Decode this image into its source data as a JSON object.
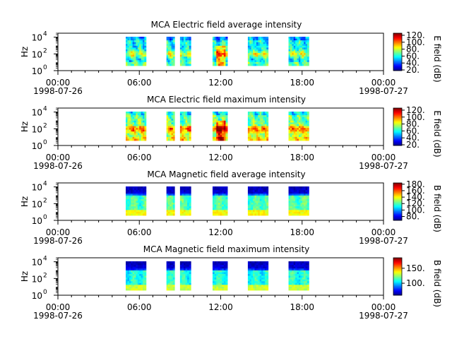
{
  "chart_data": [
    {
      "type": "heatmap",
      "title": "MCA  Electric field average intensity",
      "ylabel": "Hz",
      "colorbar_label": "E field (dB)",
      "colorbar_ticks": [
        "20.",
        "40.",
        "60.",
        "80.",
        "100.",
        "120."
      ],
      "colorbar_range": [
        18,
        126
      ],
      "yscale": "log",
      "ylim": [
        1,
        30000
      ],
      "y_ticks": [
        {
          "base": "10",
          "exp": "0"
        },
        {
          "base": "10",
          "exp": "2"
        },
        {
          "base": "10",
          "exp": "4"
        }
      ],
      "x_ticks": [
        {
          "time": "00:00",
          "date": "1998-07-26"
        },
        {
          "time": "06:00",
          "date": ""
        },
        {
          "time": "12:00",
          "date": ""
        },
        {
          "time": "18:00",
          "date": ""
        },
        {
          "time": "00:00",
          "date": "1998-07-27"
        }
      ],
      "x_range_hours": [
        0,
        24
      ],
      "data_intervals_hours": [
        [
          5.0,
          6.5
        ],
        [
          8.0,
          8.6
        ],
        [
          9.0,
          9.8
        ],
        [
          11.4,
          12.5
        ],
        [
          14.0,
          15.5
        ],
        [
          17.0,
          18.5
        ]
      ],
      "pattern": "electric-avg"
    },
    {
      "type": "heatmap",
      "title": "MCA  Electric field maximum intensity",
      "ylabel": "Hz",
      "colorbar_label": "E field (dB)",
      "colorbar_ticks": [
        "20.",
        "40.",
        "60.",
        "80.",
        "100.",
        "120."
      ],
      "colorbar_range": [
        18,
        126
      ],
      "yscale": "log",
      "ylim": [
        1,
        30000
      ],
      "y_ticks": [
        {
          "base": "10",
          "exp": "0"
        },
        {
          "base": "10",
          "exp": "2"
        },
        {
          "base": "10",
          "exp": "4"
        }
      ],
      "x_ticks": [
        {
          "time": "00:00",
          "date": "1998-07-26"
        },
        {
          "time": "06:00",
          "date": ""
        },
        {
          "time": "12:00",
          "date": ""
        },
        {
          "time": "18:00",
          "date": ""
        },
        {
          "time": "00:00",
          "date": "1998-07-27"
        }
      ],
      "x_range_hours": [
        0,
        24
      ],
      "data_intervals_hours": [
        [
          5.0,
          6.5
        ],
        [
          8.0,
          8.6
        ],
        [
          9.0,
          9.8
        ],
        [
          11.4,
          12.5
        ],
        [
          14.0,
          15.5
        ],
        [
          17.0,
          18.5
        ]
      ],
      "pattern": "electric-max"
    },
    {
      "type": "heatmap",
      "title": "MCA  Magnetic field average intensity",
      "ylabel": "Hz",
      "colorbar_label": "B field (dB)",
      "colorbar_ticks": [
        "80.",
        "100.",
        "120.",
        "140.",
        "160.",
        "180."
      ],
      "colorbar_range": [
        68,
        184
      ],
      "yscale": "log",
      "ylim": [
        1,
        30000
      ],
      "y_ticks": [
        {
          "base": "10",
          "exp": "0"
        },
        {
          "base": "10",
          "exp": "2"
        },
        {
          "base": "10",
          "exp": "4"
        }
      ],
      "x_ticks": [
        {
          "time": "00:00",
          "date": "1998-07-26"
        },
        {
          "time": "06:00",
          "date": ""
        },
        {
          "time": "12:00",
          "date": ""
        },
        {
          "time": "18:00",
          "date": ""
        },
        {
          "time": "00:00",
          "date": "1998-07-27"
        }
      ],
      "x_range_hours": [
        0,
        24
      ],
      "data_intervals_hours": [
        [
          5.0,
          6.5
        ],
        [
          8.0,
          8.6
        ],
        [
          9.0,
          9.8
        ],
        [
          11.4,
          12.5
        ],
        [
          14.0,
          15.5
        ],
        [
          17.0,
          18.5
        ]
      ],
      "pattern": "magnetic-avg"
    },
    {
      "type": "heatmap",
      "title": "MCA  Magnetic field maximum intensity",
      "ylabel": "Hz",
      "colorbar_label": "B field (dB)",
      "colorbar_ticks": [
        "100.",
        "150."
      ],
      "colorbar_range": [
        60,
        185
      ],
      "yscale": "log",
      "ylim": [
        1,
        30000
      ],
      "y_ticks": [
        {
          "base": "10",
          "exp": "0"
        },
        {
          "base": "10",
          "exp": "2"
        },
        {
          "base": "10",
          "exp": "4"
        }
      ],
      "x_ticks": [
        {
          "time": "00:00",
          "date": "1998-07-26"
        },
        {
          "time": "06:00",
          "date": ""
        },
        {
          "time": "12:00",
          "date": ""
        },
        {
          "time": "18:00",
          "date": ""
        },
        {
          "time": "00:00",
          "date": "1998-07-27"
        }
      ],
      "x_range_hours": [
        0,
        24
      ],
      "data_intervals_hours": [
        [
          5.0,
          6.5
        ],
        [
          8.0,
          8.6
        ],
        [
          9.0,
          9.8
        ],
        [
          11.4,
          12.5
        ],
        [
          14.0,
          15.5
        ],
        [
          17.0,
          18.5
        ]
      ],
      "pattern": "magnetic-max"
    }
  ]
}
